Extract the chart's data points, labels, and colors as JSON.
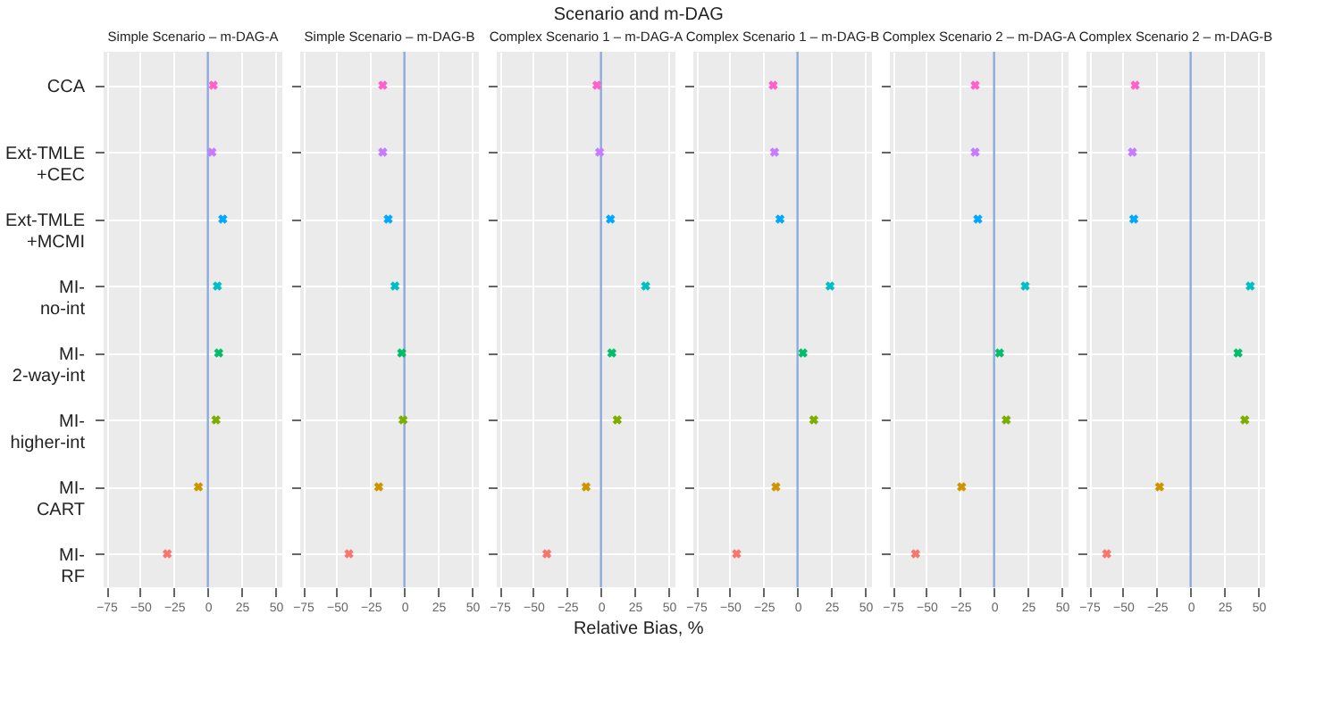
{
  "chart_data": [
    {
      "type": "scatter",
      "title": "Simple Scenario – m-DAG-A",
      "annotations": [
        "Scenario and m-DAG",
        "Relative Bias, %"
      ],
      "categories": [
        "CCA",
        "Ext-TMLE\n+CEC",
        "Ext-TMLE\n+MCMI",
        "MI-\nno-int",
        "MI-\n2-way-int",
        "MI-\nhigher-int",
        "MI-\nCART",
        "MI-\nRF"
      ],
      "orientation": "horizontal",
      "values": [
        4,
        3,
        11,
        7,
        8,
        6,
        -7,
        -30
      ],
      "colors": [
        "#ff61cc",
        "#c77cff",
        "#00a9ff",
        "#00bfc4",
        "#00be67",
        "#7cae00",
        "#cd9600",
        "#f8766d"
      ],
      "marker": "cross",
      "xlim": [
        -77,
        55
      ],
      "xticks": [
        -75,
        -50,
        -25,
        0,
        25,
        50
      ],
      "ref_lines": [
        {
          "axis": "x",
          "value": 0,
          "color": "#8ea9db"
        }
      ],
      "grid": true
    },
    {
      "type": "scatter",
      "title": "Simple Scenario – m-DAG-B",
      "orientation": "horizontal",
      "values": [
        -16,
        -16,
        -12,
        -7,
        -2,
        -1,
        -19,
        -41
      ],
      "colors": [
        "#ff61cc",
        "#c77cff",
        "#00a9ff",
        "#00bfc4",
        "#00be67",
        "#7cae00",
        "#cd9600",
        "#f8766d"
      ],
      "marker": "cross",
      "xlim": [
        -77,
        55
      ],
      "xticks": [
        -75,
        -50,
        -25,
        0,
        25,
        50
      ],
      "ref_lines": [
        {
          "axis": "x",
          "value": 0,
          "color": "#8ea9db"
        }
      ],
      "grid": true,
      "tick_labels": "x"
    },
    {
      "type": "scatter",
      "title": "Complex Scenario 1 – m-DAG-A",
      "orientation": "horizontal",
      "values": [
        -3,
        -1,
        7,
        33,
        8,
        12,
        -11,
        -40
      ],
      "colors": [
        "#ff61cc",
        "#c77cff",
        "#00a9ff",
        "#00bfc4",
        "#00be67",
        "#7cae00",
        "#cd9600",
        "#f8766d"
      ],
      "marker": "cross",
      "xlim": [
        -77,
        55
      ],
      "xticks": [
        -75,
        -50,
        -25,
        0,
        25,
        50
      ],
      "ref_lines": [
        {
          "axis": "x",
          "value": 0,
          "color": "#8ea9db"
        }
      ],
      "grid": true,
      "tick_labels": "x"
    },
    {
      "type": "scatter",
      "title": "Complex Scenario 1 – m-DAG-B",
      "orientation": "horizontal",
      "values": [
        -18,
        -17,
        -13,
        24,
        4,
        12,
        -16,
        -45
      ],
      "colors": [
        "#ff61cc",
        "#c77cff",
        "#00a9ff",
        "#00bfc4",
        "#00be67",
        "#7cae00",
        "#cd9600",
        "#f8766d"
      ],
      "marker": "cross",
      "xlim": [
        -77,
        55
      ],
      "xticks": [
        -75,
        -50,
        -25,
        0,
        25,
        50
      ],
      "ref_lines": [
        {
          "axis": "x",
          "value": 0,
          "color": "#8ea9db"
        }
      ],
      "grid": true,
      "tick_labels": "x"
    },
    {
      "type": "scatter",
      "title": "Complex Scenario 2 – m-DAG-A",
      "orientation": "horizontal",
      "values": [
        -14,
        -14,
        -12,
        23,
        4,
        9,
        -24,
        -58
      ],
      "colors": [
        "#ff61cc",
        "#c77cff",
        "#00a9ff",
        "#00bfc4",
        "#00be67",
        "#7cae00",
        "#cd9600",
        "#f8766d"
      ],
      "marker": "cross",
      "xlim": [
        -77,
        55
      ],
      "xticks": [
        -75,
        -50,
        -25,
        0,
        25,
        50
      ],
      "ref_lines": [
        {
          "axis": "x",
          "value": 0,
          "color": "#8ea9db"
        }
      ],
      "grid": true,
      "tick_labels": "x"
    },
    {
      "type": "scatter",
      "title": "Complex Scenario 2 – m-DAG-B",
      "orientation": "horizontal",
      "values": [
        -41,
        -43,
        -42,
        44,
        35,
        40,
        -23,
        -62
      ],
      "colors": [
        "#ff61cc",
        "#c77cff",
        "#00a9ff",
        "#00bfc4",
        "#00be67",
        "#7cae00",
        "#cd9600",
        "#f8766d"
      ],
      "marker": "cross",
      "xlim": [
        -77,
        55
      ],
      "xticks": [
        -75,
        -50,
        -25,
        0,
        25,
        50
      ],
      "ref_lines": [
        {
          "axis": "x",
          "value": 0,
          "color": "#8ea9db"
        }
      ],
      "grid": true,
      "tick_labels": "x"
    }
  ]
}
